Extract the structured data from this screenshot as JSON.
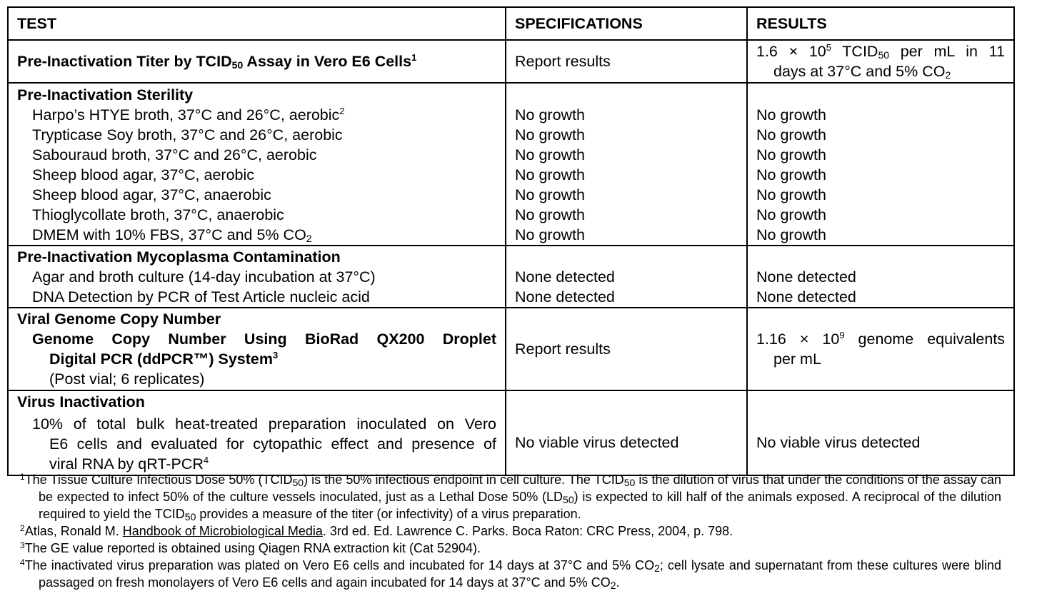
{
  "headers": {
    "test": "TEST",
    "specifications": "SPECIFICATIONS",
    "results": "RESULTS"
  },
  "titer": {
    "test_pre": "Pre-Inactivation Titer by TCID",
    "test_sub": "50",
    "test_post": " Assay in Vero E6 Cells",
    "test_sup": "1",
    "spec": "Report results",
    "result_line1_a": "1.6 × 10",
    "result_line1_sup": "5",
    "result_line1_b": " TCID",
    "result_line1_sub": "50",
    "result_line1_c": " per mL in 11",
    "result_line2_a": "days at 37°C and 5% CO",
    "result_line2_sub": "2"
  },
  "sterility": {
    "heading": "Pre-Inactivation Sterility",
    "items": [
      {
        "label": "Harpo’s HTYE broth, 37°C and 26°C, aerobic",
        "sup": "2",
        "spec": "No growth",
        "result": "No growth"
      },
      {
        "label": "Trypticase Soy broth, 37°C and 26°C, aerobic",
        "spec": "No growth",
        "result": "No growth"
      },
      {
        "label": "Sabouraud broth, 37°C and 26°C, aerobic",
        "spec": "No growth",
        "result": "No growth"
      },
      {
        "label": "Sheep blood agar, 37°C, aerobic",
        "spec": "No growth",
        "result": "No growth"
      },
      {
        "label": "Sheep blood agar, 37°C, anaerobic",
        "spec": "No growth",
        "result": "No growth"
      },
      {
        "label": "Thioglycollate broth, 37°C, anaerobic",
        "spec": "No growth",
        "result": "No growth"
      },
      {
        "label": "DMEM with 10% FBS, 37°C and 5% CO",
        "sub": "2",
        "spec": "No growth",
        "result": "No growth"
      }
    ]
  },
  "mycoplasma": {
    "heading": "Pre-Inactivation Mycoplasma Contamination",
    "items": [
      {
        "label": "Agar and broth culture (14-day incubation at 37°C)",
        "spec": "None detected",
        "result": "None detected"
      },
      {
        "label": "DNA Detection by PCR of Test Article nucleic acid",
        "spec": "None detected",
        "result": "None detected"
      }
    ]
  },
  "genome": {
    "heading": "Viral Genome Copy Number",
    "method_line1": "Genome Copy Number Using BioRad QX200 Droplet",
    "method_line2": "Digital PCR (ddPCR™) System",
    "method_sup": "3",
    "method_note": "(Post vial; 6 replicates)",
    "spec": "Report results",
    "result_line1_a": "1.16 × 10",
    "result_line1_sup": "9",
    "result_line1_b": " genome equivalents",
    "result_line2": "per mL"
  },
  "inactivation": {
    "heading": "Virus Inactivation",
    "desc_line1": "10% of total bulk heat-treated preparation inoculated on Vero",
    "desc_line2": "E6 cells and evaluated for cytopathic effect and presence of",
    "desc_line3": "viral RNA by qRT-PCR",
    "desc_sup": "4",
    "spec": "No viable virus detected",
    "result": "No viable virus detected"
  },
  "footnotes": {
    "n1": {
      "num": "1",
      "a": "The Tissue Culture Infectious Dose 50% (TCID",
      "b": ") is the 50% infectious endpoint in cell culture.  The TCID",
      "c": " is the dilution of virus that under the conditions of the assay can be expected to infect 50% of the culture vessels inoculated, just as a Lethal Dose 50% (LD",
      "d": ") is expected to kill half of the animals exposed.  A reciprocal of the dilution required to yield the TCID",
      "e": " provides a measure of the titer (or infectivity) of a virus preparation.",
      "sub": "50"
    },
    "n2": {
      "num": "2",
      "a": "Atlas, Ronald M. ",
      "title": "Handbook of Microbiological Media",
      "b": ". 3rd ed. Ed. Lawrence C. Parks. Boca Raton: CRC Press, 2004, p. 798."
    },
    "n3": {
      "num": "3",
      "text": "The GE value reported is obtained using Qiagen RNA extraction kit (Cat 52904)."
    },
    "n4": {
      "num": "4",
      "a": "The inactivated virus preparation was plated on Vero E6 cells and incubated for 14 days at 37°C and 5% CO",
      "b": "; cell lysate and supernatant from these cultures were blind passaged on fresh monolayers of Vero E6 cells and again incubated for 14 days at 37°C and 5% CO",
      "c": ".",
      "sub": "2"
    }
  }
}
